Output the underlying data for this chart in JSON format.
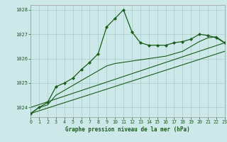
{
  "title": "Graphe pression niveau de la mer (hPa)",
  "background_color": "#cce8e8",
  "grid_color": "#aacccc",
  "line_color": "#1a5c1a",
  "marker_color": "#1a5c1a",
  "xlim": [
    0,
    23
  ],
  "ylim": [
    1023.6,
    1028.2
  ],
  "yticks": [
    1024,
    1025,
    1026,
    1027,
    1028
  ],
  "xticks": [
    0,
    1,
    2,
    3,
    4,
    5,
    6,
    7,
    8,
    9,
    10,
    11,
    12,
    13,
    14,
    15,
    16,
    17,
    18,
    19,
    20,
    21,
    22,
    23
  ],
  "series_main": {
    "x": [
      0,
      1,
      2,
      3,
      4,
      5,
      6,
      7,
      8,
      9,
      10,
      11,
      12,
      13,
      14,
      15,
      16,
      17,
      18,
      19,
      20,
      21,
      22,
      23
    ],
    "y": [
      1023.75,
      1024.0,
      1024.2,
      1024.85,
      1025.0,
      1025.2,
      1025.55,
      1025.85,
      1026.2,
      1027.3,
      1027.65,
      1028.0,
      1027.1,
      1026.65,
      1026.55,
      1026.55,
      1026.55,
      1026.65,
      1026.7,
      1026.8,
      1027.0,
      1026.95,
      1026.85,
      1026.65
    ]
  },
  "series_smooth": {
    "x": [
      0,
      1,
      2,
      3,
      4,
      5,
      6,
      7,
      8,
      9,
      10,
      11,
      12,
      13,
      14,
      15,
      16,
      17,
      18,
      19,
      20,
      21,
      22,
      23
    ],
    "y": [
      1023.75,
      1024.0,
      1024.1,
      1024.5,
      1024.7,
      1024.9,
      1025.1,
      1025.3,
      1025.5,
      1025.7,
      1025.8,
      1025.85,
      1025.9,
      1025.95,
      1026.0,
      1026.05,
      1026.1,
      1026.2,
      1026.3,
      1026.5,
      1026.7,
      1026.85,
      1026.9,
      1026.65
    ]
  },
  "line_straight1": {
    "x": [
      0,
      23
    ],
    "y": [
      1023.75,
      1026.3
    ]
  },
  "line_straight2": {
    "x": [
      0,
      23
    ],
    "y": [
      1024.0,
      1026.65
    ]
  }
}
